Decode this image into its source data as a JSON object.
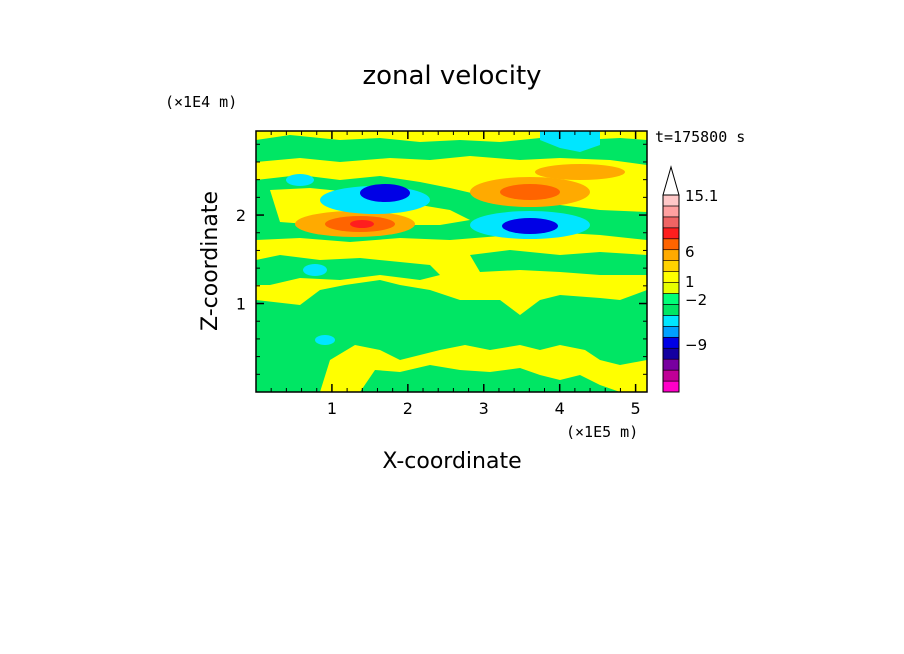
{
  "chart_data": {
    "type": "heatmap",
    "title": "zonal velocity",
    "xlabel": "X-coordinate",
    "ylabel": "Z-coordinate",
    "x_scale_label": "(×1E5 m)",
    "y_scale_label": "(×1E4 m)",
    "time_label": "t=175800 s",
    "xlim": [
      0,
      5.15
    ],
    "ylim": [
      0,
      2.95
    ],
    "x_ticks": [
      1,
      2,
      3,
      4,
      5
    ],
    "y_ticks": [
      1,
      2
    ],
    "grid": false,
    "colorbar": {
      "labels": [
        "15.1",
        "6",
        "1",
        "−2",
        "−9"
      ],
      "colors": [
        "#ff00c8",
        "#c00096",
        "#7800a0",
        "#1400a0",
        "#0000e6",
        "#00a0ff",
        "#00e6ff",
        "#00e664",
        "#00ff78",
        "#e6ff00",
        "#ffff00",
        "#ffd200",
        "#ffaa00",
        "#ff6400",
        "#ff1e1e",
        "#f06464",
        "#ffa0a0",
        "#ffc8c8"
      ],
      "extend": "max"
    },
    "regions": [
      {
        "value": "positive",
        "x": 1.3,
        "z": 1.9,
        "desc": "orange/red jet"
      },
      {
        "value": "positive",
        "x": 3.4,
        "z": 2.3,
        "desc": "orange jet"
      },
      {
        "value": "positive",
        "x": 4.2,
        "z": 2.5,
        "desc": "orange band"
      },
      {
        "value": "negative",
        "x": 1.7,
        "z": 2.3,
        "desc": "blue core"
      },
      {
        "value": "negative",
        "x": 3.6,
        "z": 1.9,
        "desc": "blue core"
      },
      {
        "value": "negative",
        "x": 4.2,
        "z": 2.9,
        "desc": "cyan patch"
      }
    ]
  }
}
